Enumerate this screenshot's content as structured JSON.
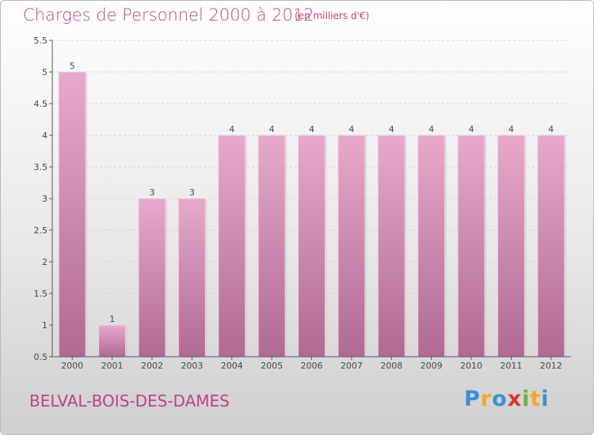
{
  "header": {
    "title": "Charges de Personnel 2000 à 2012",
    "unit": "(en milliers d'€)"
  },
  "footer": {
    "city": "BELVAL-BOIS-DES-DAMES",
    "logo_letters": [
      "P",
      "r",
      "o",
      "x",
      "i",
      "t",
      "i"
    ],
    "logo_colors": [
      "#3a8fd8",
      "#f2a81f",
      "#3a8fd8",
      "#e0342b",
      "#6bb33a",
      "#f2a81f",
      "#3a8fd8"
    ]
  },
  "colors": {
    "title": "#b8457a",
    "bar_top": "#e7a9cc",
    "bar_bottom": "#b06a94",
    "grid": "#d2d2d2",
    "axis": "#555555"
  },
  "chart_data": {
    "type": "bar",
    "categories": [
      "2000",
      "2001",
      "2002",
      "2003",
      "2004",
      "2005",
      "2006",
      "2007",
      "2008",
      "2009",
      "2010",
      "2011",
      "2012"
    ],
    "values": [
      5,
      1,
      3,
      3,
      4,
      4,
      4,
      4,
      4,
      4,
      4,
      4,
      4
    ],
    "data_labels": [
      "5",
      "1",
      "3",
      "3",
      "4",
      "4",
      "4",
      "4",
      "4",
      "4",
      "4",
      "4",
      "4"
    ],
    "ylim": [
      0.5,
      5.5
    ],
    "yticks": [
      0.5,
      1,
      1.5,
      2,
      2.5,
      3,
      3.5,
      4,
      4.5,
      5,
      5.5
    ],
    "ytick_labels": [
      "0.5",
      "1",
      "1.5",
      "2",
      "2.5",
      "3",
      "3.5",
      "4",
      "4.5",
      "5",
      "5.5"
    ],
    "grid": true,
    "legend": "none"
  }
}
